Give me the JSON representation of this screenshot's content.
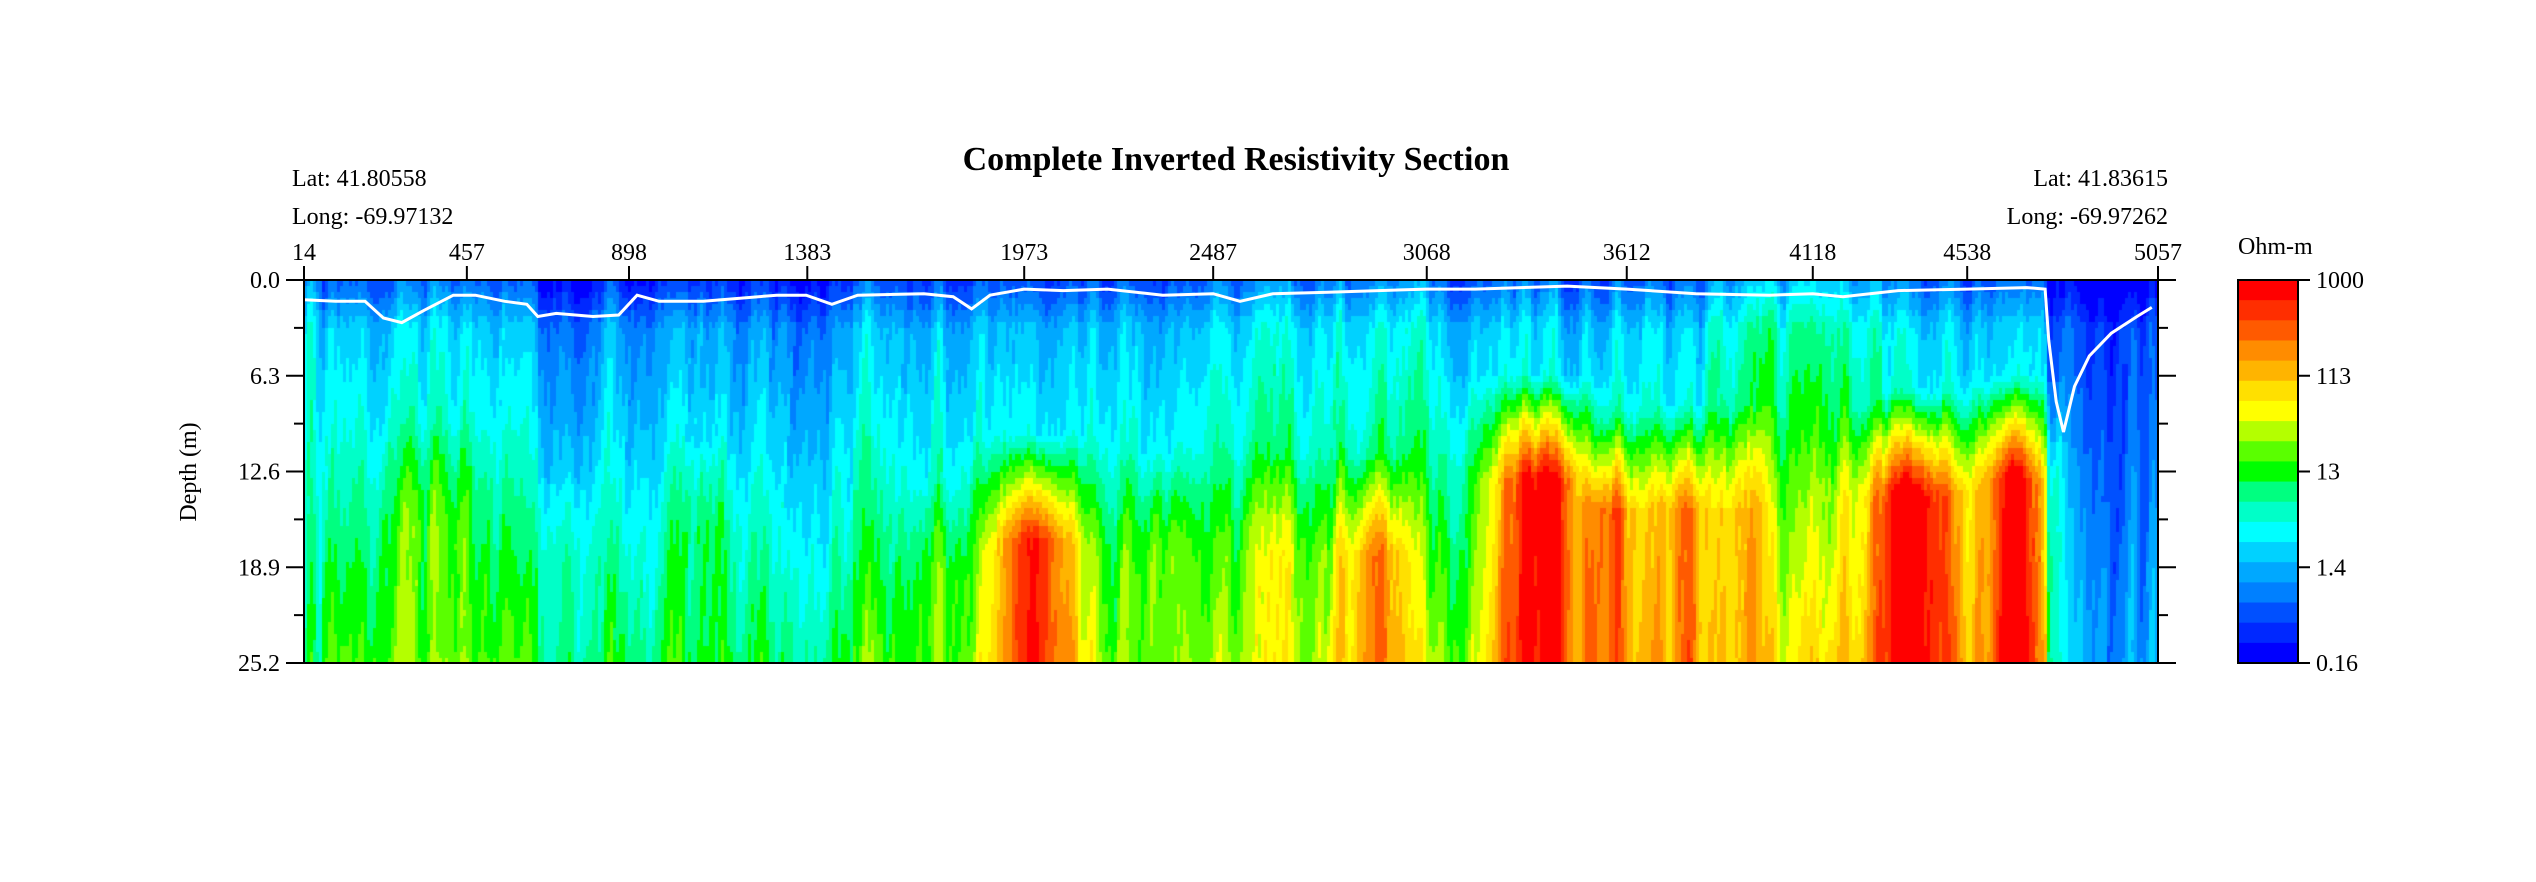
{
  "chart_data": {
    "type": "heatmap",
    "title": "Complete Inverted Resistivity Section",
    "ylabel": "Depth (m)",
    "start_coords": {
      "lat_label": "Lat: 41.80558",
      "long_label": "Long: -69.97132"
    },
    "end_coords": {
      "lat_label": "Lat: 41.83615",
      "long_label": "Long: -69.97262"
    },
    "x_ticks": [
      14,
      457,
      898,
      1383,
      1973,
      2487,
      3068,
      3612,
      4118,
      4538,
      5057
    ],
    "xlim": [
      14,
      5057
    ],
    "y_ticks": [
      "0.0",
      "6.3",
      "12.6",
      "18.9",
      "25.2"
    ],
    "ylim": [
      0,
      25.2
    ],
    "colorbar": {
      "unit": "Ohm-m",
      "tick_labels": [
        "1000",
        "113",
        "13",
        "1.4",
        "0.16"
      ],
      "log_min": -0.8,
      "log_max": 3.0,
      "colors_high_to_low": [
        "#ff0000",
        "#ff2e00",
        "#ff5a00",
        "#ff8c00",
        "#ffb400",
        "#ffe000",
        "#ffff00",
        "#b4ff00",
        "#5aff00",
        "#00ff00",
        "#00ff80",
        "#00ffc8",
        "#00ffff",
        "#00d2ff",
        "#00a8ff",
        "#0080ff",
        "#0050ff",
        "#0028ff",
        "#0000ff"
      ]
    },
    "anomalies": [
      {
        "x": 360,
        "x_width": 280,
        "top_depth": 9,
        "peak_log": 1.2
      },
      {
        "x": 700,
        "x_width": 220,
        "top_depth": 12,
        "peak_log": 0.9
      },
      {
        "x": 1100,
        "x_width": 180,
        "top_depth": 10,
        "peak_log": 0.9
      },
      {
        "x": 2000,
        "x_width": 260,
        "top_depth": 10,
        "peak_log": 2.9
      },
      {
        "x": 1750,
        "x_width": 200,
        "top_depth": 13,
        "peak_log": 1.4
      },
      {
        "x": 2350,
        "x_width": 220,
        "top_depth": 11,
        "peak_log": 1.5
      },
      {
        "x": 2650,
        "x_width": 220,
        "top_depth": 11,
        "peak_log": 1.6
      },
      {
        "x": 2920,
        "x_width": 210,
        "top_depth": 11,
        "peak_log": 2.3
      },
      {
        "x": 3380,
        "x_width": 300,
        "top_depth": 6,
        "peak_log": 2.95
      },
      {
        "x": 3560,
        "x_width": 200,
        "top_depth": 8,
        "peak_log": 2.5
      },
      {
        "x": 3760,
        "x_width": 190,
        "top_depth": 8,
        "peak_log": 2.4
      },
      {
        "x": 3920,
        "x_width": 160,
        "top_depth": 8,
        "peak_log": 2.1
      },
      {
        "x": 4120,
        "x_width": 220,
        "top_depth": 12,
        "peak_log": 1.3
      },
      {
        "x": 4390,
        "x_width": 300,
        "top_depth": 7,
        "peak_log": 3.0
      },
      {
        "x": 4660,
        "x_width": 200,
        "top_depth": 6,
        "peak_log": 3.0
      }
    ],
    "bathymetry_line": [
      [
        14,
        1.3
      ],
      [
        100,
        1.4
      ],
      [
        180,
        1.4
      ],
      [
        230,
        2.5
      ],
      [
        280,
        2.8
      ],
      [
        340,
        2.0
      ],
      [
        420,
        1.0
      ],
      [
        480,
        1.0
      ],
      [
        560,
        1.4
      ],
      [
        620,
        1.6
      ],
      [
        650,
        2.4
      ],
      [
        700,
        2.2
      ],
      [
        800,
        2.4
      ],
      [
        870,
        2.3
      ],
      [
        920,
        1.0
      ],
      [
        980,
        1.4
      ],
      [
        1100,
        1.4
      ],
      [
        1200,
        1.2
      ],
      [
        1300,
        1.0
      ],
      [
        1380,
        1.0
      ],
      [
        1450,
        1.6
      ],
      [
        1520,
        1.0
      ],
      [
        1700,
        0.9
      ],
      [
        1780,
        1.1
      ],
      [
        1830,
        1.9
      ],
      [
        1880,
        1.0
      ],
      [
        1973,
        0.6
      ],
      [
        2080,
        0.7
      ],
      [
        2200,
        0.6
      ],
      [
        2350,
        1.0
      ],
      [
        2487,
        0.9
      ],
      [
        2560,
        1.4
      ],
      [
        2650,
        0.9
      ],
      [
        2800,
        0.8
      ],
      [
        3068,
        0.6
      ],
      [
        3200,
        0.6
      ],
      [
        3450,
        0.4
      ],
      [
        3612,
        0.6
      ],
      [
        3800,
        0.9
      ],
      [
        4000,
        1.0
      ],
      [
        4118,
        0.9
      ],
      [
        4200,
        1.1
      ],
      [
        4350,
        0.7
      ],
      [
        4538,
        0.6
      ],
      [
        4700,
        0.5
      ],
      [
        4750,
        0.6
      ],
      [
        4760,
        4.0
      ],
      [
        4780,
        8.0
      ],
      [
        4800,
        10.0
      ],
      [
        4830,
        7.0
      ],
      [
        4870,
        5.0
      ],
      [
        4930,
        3.5
      ],
      [
        5000,
        2.4
      ],
      [
        5040,
        1.8
      ]
    ]
  }
}
